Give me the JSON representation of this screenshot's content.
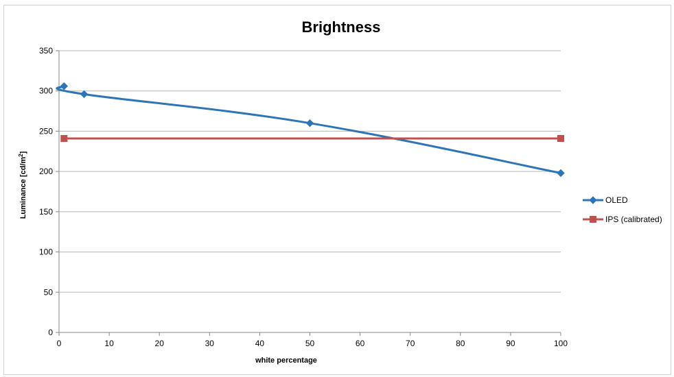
{
  "chart_data": {
    "type": "line",
    "title": "Brightness",
    "xlabel": "white percentage",
    "ylabel_main": "Luminance [cd/m",
    "ylabel_sup": "2",
    "ylabel_end": "]",
    "xlim": [
      0,
      100
    ],
    "ylim": [
      0,
      350
    ],
    "x_ticks": [
      "0",
      "10",
      "20",
      "30",
      "40",
      "50",
      "60",
      "70",
      "80",
      "90",
      "100"
    ],
    "y_ticks": [
      "0",
      "50",
      "100",
      "150",
      "200",
      "250",
      "300",
      "350"
    ],
    "grid": true,
    "legend_position": "right",
    "series": [
      {
        "name": "OLED",
        "color": "#2e75b6",
        "marker": "diamond",
        "smooth": true,
        "x": [
          1,
          5,
          50,
          100
        ],
        "y": [
          306,
          296,
          260,
          198
        ]
      },
      {
        "name": "IPS (calibrated)",
        "color": "#c0504d",
        "marker": "square",
        "smooth": false,
        "x": [
          1,
          100
        ],
        "y": [
          241,
          241
        ]
      }
    ]
  }
}
